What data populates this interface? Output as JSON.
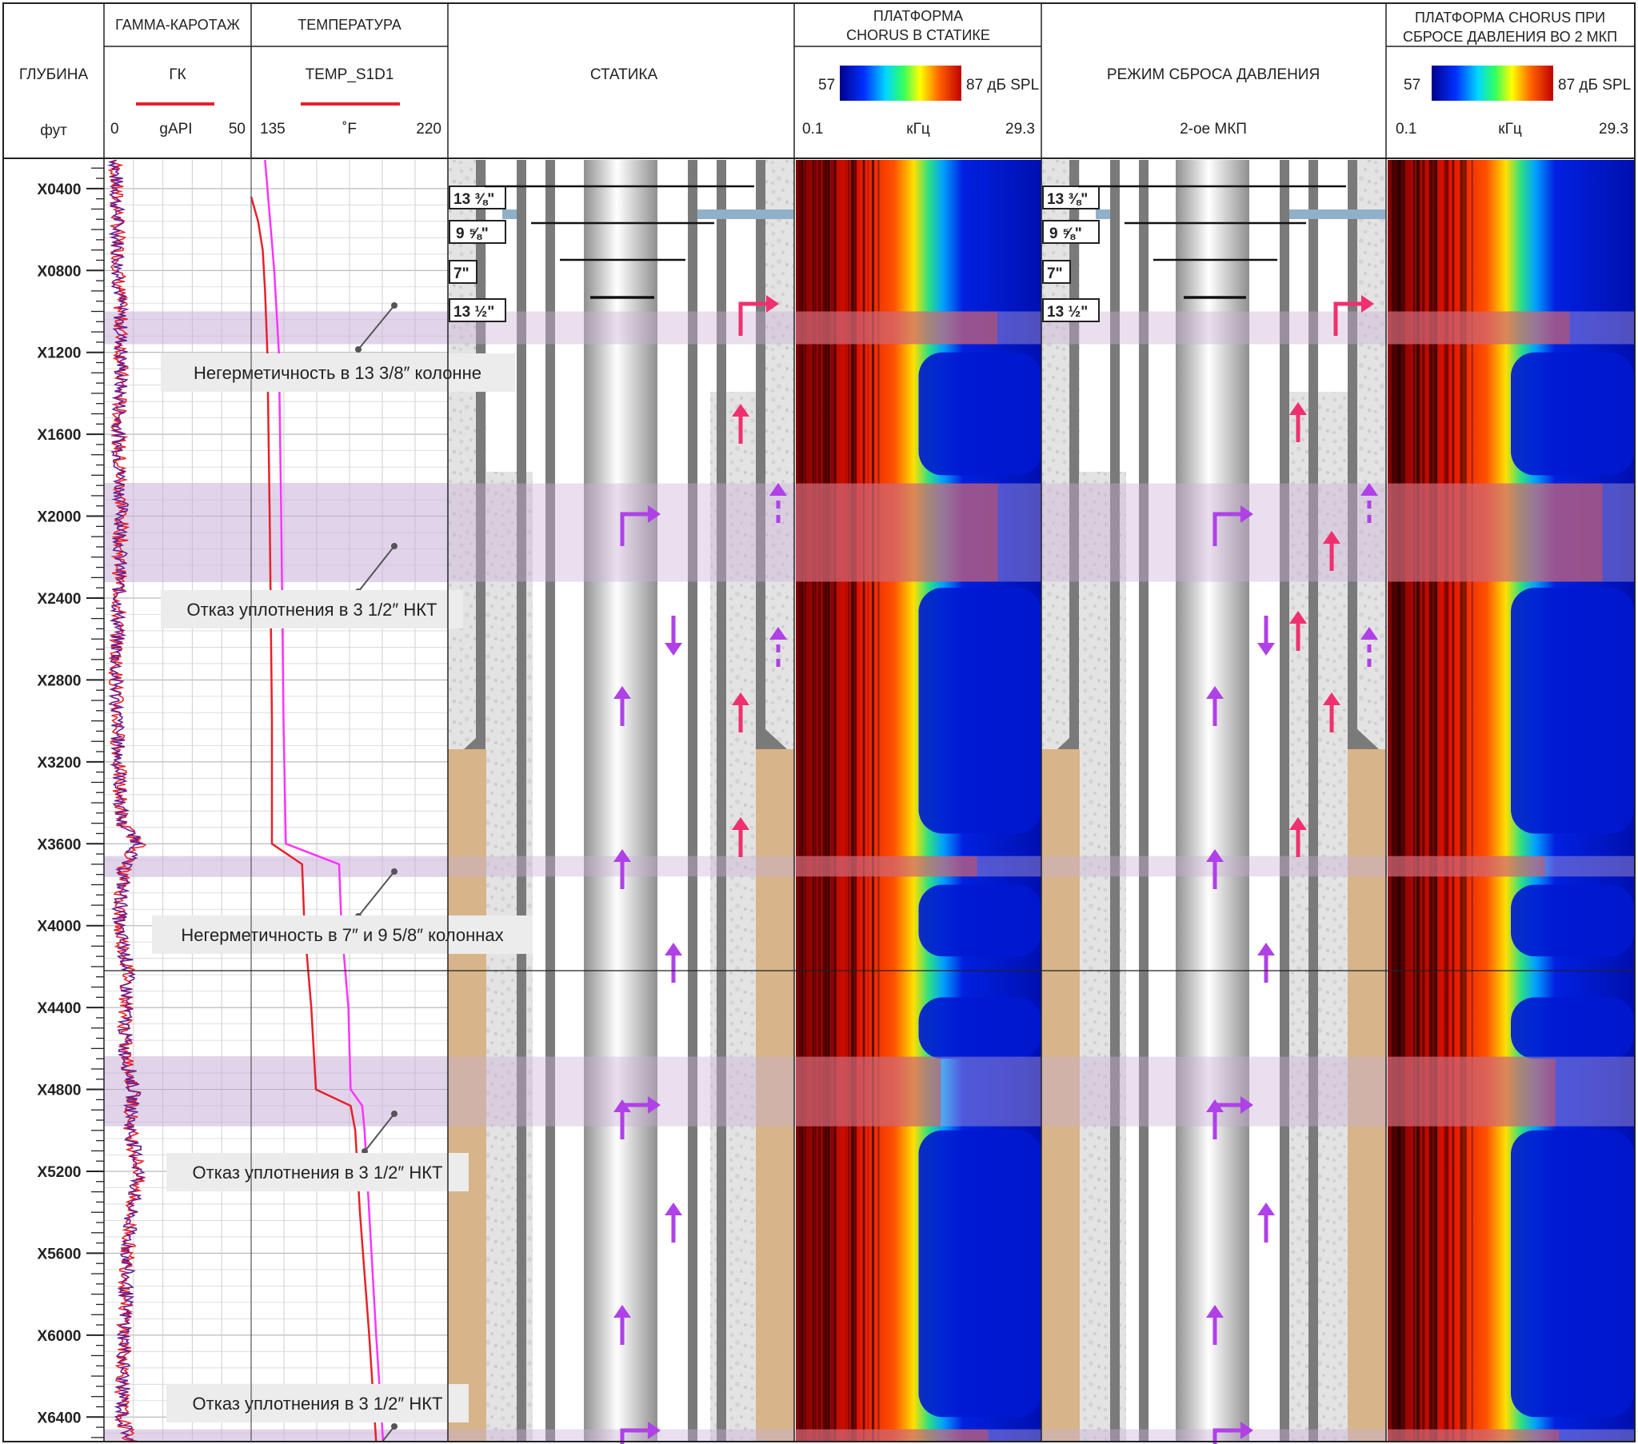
{
  "headers": {
    "depth": {
      "title": "ГЛУБИНА",
      "unit": "фут"
    },
    "gamma": {
      "title": "ГАММА-КАРОТАЖ",
      "curve": "ГК",
      "min": "0",
      "unit": "gAPI",
      "max": "50"
    },
    "temp": {
      "title": "ТЕМПЕРАТУРА",
      "curve": "TEMP_S1D1",
      "min": "135",
      "unit": "˚F",
      "max": "220"
    },
    "static": {
      "title": "СТАТИКА"
    },
    "chorus_static": {
      "title_line1": "ПЛАТФОРМА",
      "title_line2": "CHORUS В СТАТИКЕ",
      "scale_min": "57",
      "scale_max": "87 дБ SPL",
      "f_min": "0.1",
      "f_unit": "кГц",
      "f_max": "29.3"
    },
    "pressure_mode": {
      "title": "РЕЖИМ СБРОСА ДАВЛЕНИЯ",
      "subtitle": "2-ое МКП"
    },
    "chorus_release": {
      "title_line1": "ПЛАТФОРМА CHORUS ПРИ",
      "title_line2": "СБРОСЕ ДАВЛЕНИЯ ВО 2 МКП",
      "scale_min": "57",
      "scale_max": "87 дБ SPL",
      "f_min": "0.1",
      "f_unit": "кГц",
      "f_max": "29.3"
    }
  },
  "casing_labels": [
    "13 ⅜\"",
    "9 ⅝\"",
    "7\"",
    "13 ½\""
  ],
  "annotations": [
    "Негерметичность в 13 3/8″ колонне",
    "Отказ уплотнения в 3 1/2″ НКТ",
    "Негерметичность в 7″ и 9 5/8″ колоннах",
    "Отказ уплотнения в 3 1/2″ НКТ",
    "Отказ уплотнения в 3 1/2″ НКТ"
  ],
  "colors": {
    "gamma_red": "#e8202a",
    "gamma_purple": "#6a1b8a",
    "temp_red": "#e8202a",
    "temp_magenta": "#ff33ff",
    "highlight": "#c8b0d8",
    "arrow_pink": "#f0306e",
    "arrow_purple": "#b040e8",
    "cement": "#d8b48a"
  },
  "chart_data": {
    "type": "line",
    "y_axis": {
      "label": "ГЛУБИНА",
      "unit": "фут",
      "ticks": [
        "X0400",
        "X0800",
        "X1200",
        "X1600",
        "X2000",
        "X2400",
        "X2800",
        "X3200",
        "X3600",
        "X4000",
        "X4400",
        "X4800",
        "X5200",
        "X5600",
        "X6000",
        "X6400"
      ]
    },
    "depth_range": [
      260,
      6520
    ],
    "highlight_zones": [
      [
        1000,
        1160
      ],
      [
        1840,
        2320
      ],
      [
        3660,
        3760
      ],
      [
        4640,
        4980
      ],
      [
        6460,
        6520
      ]
    ],
    "series": [
      {
        "name": "ГК",
        "unit": "gAPI",
        "xlim": [
          0,
          50
        ],
        "depth": [
          300,
          800,
          1200,
          1600,
          2000,
          2400,
          2800,
          3200,
          3500,
          3600,
          3700,
          4000,
          4200,
          4600,
          4800,
          5000,
          5200,
          5400,
          5600,
          6000,
          6400,
          6520
        ],
        "values": [
          4,
          5,
          6,
          5,
          6,
          5,
          4,
          5,
          6,
          12,
          7,
          5,
          8,
          7,
          10,
          9,
          12,
          9,
          8,
          7,
          6,
          9
        ]
      },
      {
        "name": "TEMP_S1D1",
        "unit": "˚F",
        "xlim": [
          135,
          220
        ],
        "depth": [
          440,
          560,
          700,
          900,
          1200,
          2000,
          3000,
          3600,
          3700,
          4000,
          4400,
          4800,
          4880,
          5000,
          5400,
          6000,
          6520
        ],
        "values": [
          135,
          138,
          140,
          141,
          142,
          143,
          144,
          144,
          157,
          158,
          161,
          163,
          178,
          180,
          182,
          186,
          189
        ]
      },
      {
        "name": "TEMP_S1D1 (2)",
        "unit": "˚F",
        "xlim": [
          135,
          220
        ],
        "depth": [
          260,
          800,
          1200,
          2000,
          3000,
          3600,
          3700,
          4000,
          4400,
          4800,
          4880,
          5000,
          5400,
          6000,
          6520
        ],
        "values": [
          141,
          145,
          147,
          148,
          149,
          150,
          173,
          174,
          177,
          178,
          183,
          184,
          186,
          189,
          192
        ]
      }
    ]
  }
}
